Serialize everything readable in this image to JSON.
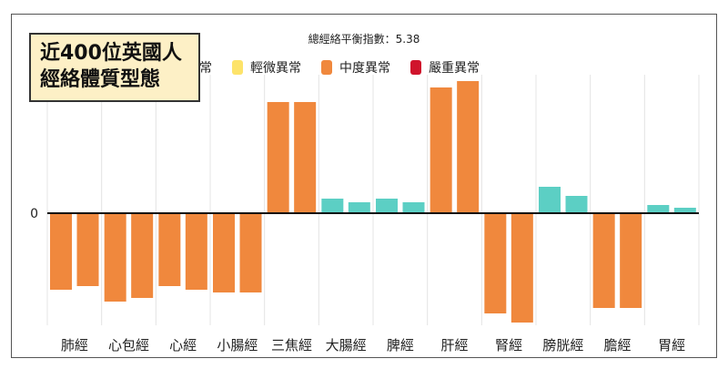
{
  "overlay": {
    "line1": "近400位英國人",
    "line2": "經絡體質型態"
  },
  "chart_data": {
    "type": "bar",
    "title": "總經絡平衡指數：5.38",
    "legend": [
      {
        "label": "正常",
        "color": "#5ccfc4"
      },
      {
        "label": "輕微異常",
        "color": "#fde36a"
      },
      {
        "label": "中度異常",
        "color": "#f0883d"
      },
      {
        "label": "嚴重異常",
        "color": "#d0142c"
      }
    ],
    "legend_position": "top",
    "categories": [
      "肺經",
      "心包經",
      "心經",
      "小腸經",
      "三焦經",
      "大腸經",
      "脾經",
      "肝經",
      "腎經",
      "膀胱經",
      "膽經",
      "胃經"
    ],
    "series": [
      {
        "values": [
          -84,
          -97,
          -80,
          -87,
          122,
          16,
          16,
          138,
          -110,
          29,
          -104,
          9
        ],
        "colors": [
          "#f0883d",
          "#f0883d",
          "#f0883d",
          "#f0883d",
          "#f0883d",
          "#5ccfc4",
          "#5ccfc4",
          "#f0883d",
          "#f0883d",
          "#5ccfc4",
          "#f0883d",
          "#5ccfc4"
        ]
      },
      {
        "values": [
          -80,
          -93,
          -84,
          -87,
          122,
          12,
          12,
          145,
          -120,
          19,
          -104,
          6
        ],
        "colors": [
          "#f0883d",
          "#f0883d",
          "#f0883d",
          "#f0883d",
          "#f0883d",
          "#5ccfc4",
          "#5ccfc4",
          "#f0883d",
          "#f0883d",
          "#5ccfc4",
          "#f0883d",
          "#5ccfc4"
        ]
      }
    ],
    "yticks": [
      "0"
    ],
    "ylim": [
      -123,
      152
    ],
    "grid": "vertical"
  }
}
